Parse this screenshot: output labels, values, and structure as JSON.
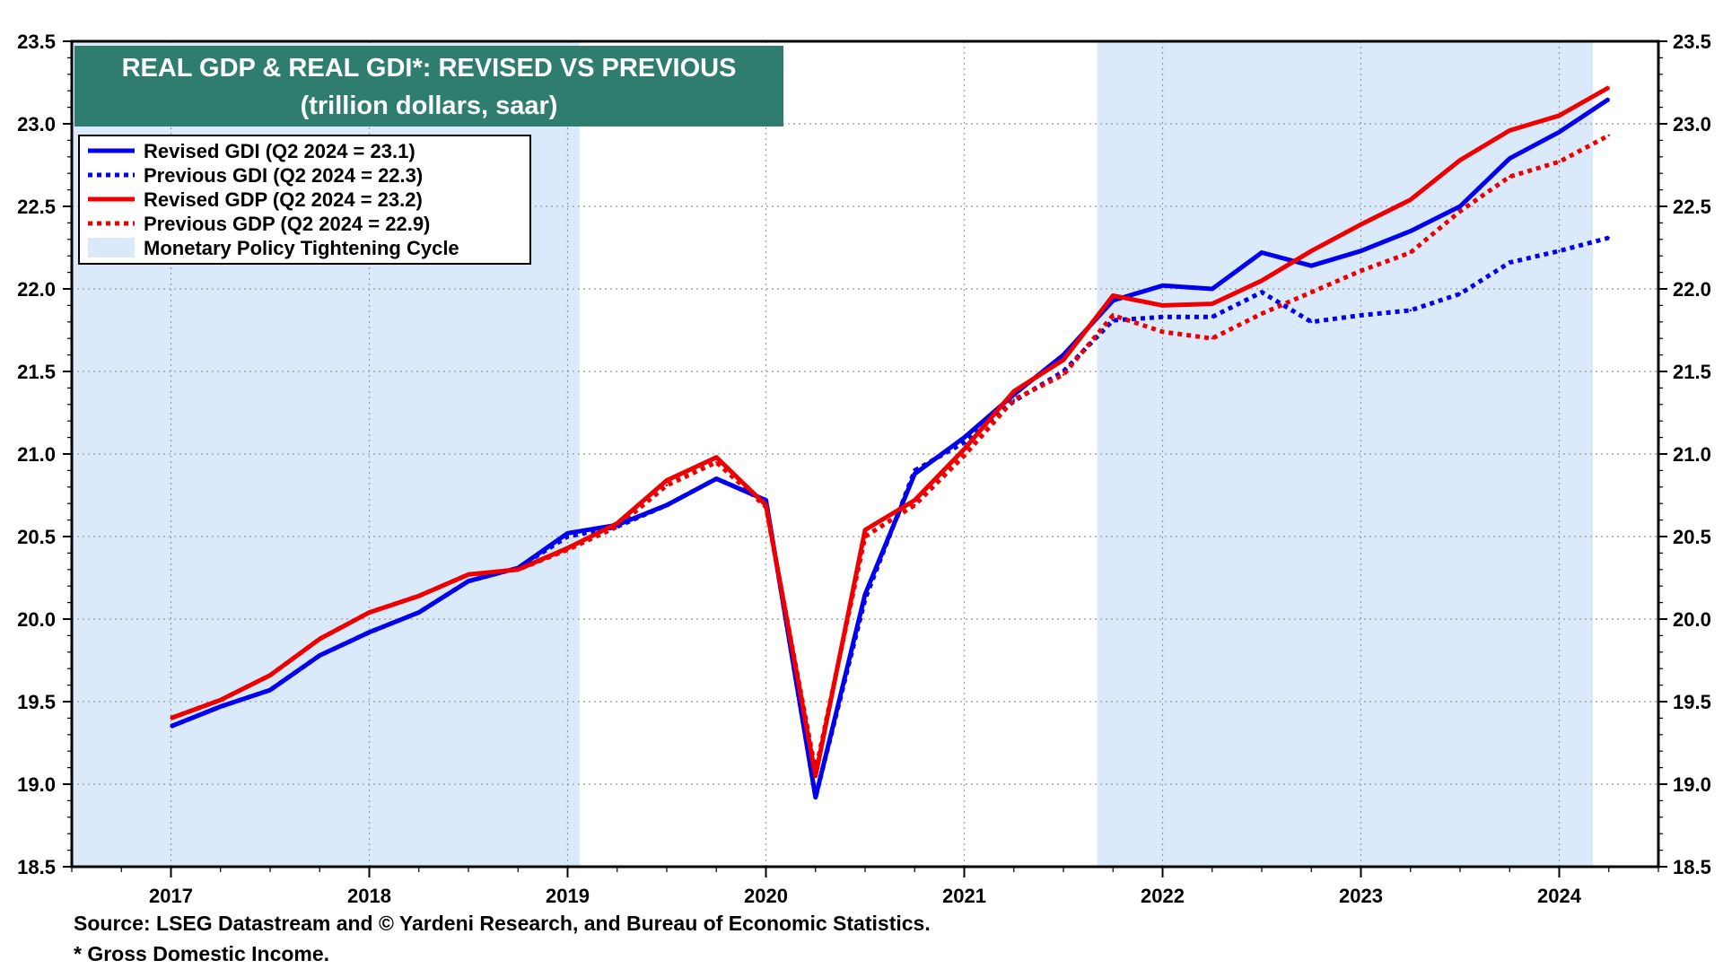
{
  "chart_data": {
    "type": "line",
    "title": "REAL GDP & REAL GDI*: REVISED VS PREVIOUS",
    "subtitle": "(trillion dollars, saar)",
    "xlabel": "",
    "ylabel": "",
    "ylim": [
      18.5,
      23.5
    ],
    "xlim": [
      2016.5,
      2024.5
    ],
    "y_ticks": [
      "18.5",
      "19.0",
      "19.5",
      "20.0",
      "20.5",
      "21.0",
      "21.5",
      "22.0",
      "22.5",
      "23.0",
      "23.5"
    ],
    "x_tick_labels": [
      "2017",
      "2018",
      "2019",
      "2020",
      "2021",
      "2022",
      "2023",
      "2024"
    ],
    "legend_position": "top-left",
    "grid": true,
    "colors": {
      "title_bg": "#2e7d6f",
      "shade": "#dbeafb",
      "gdi": "#0000ee",
      "gdp": "#ee0000"
    },
    "shaded_periods": [
      {
        "label": "Monetary Policy Tightening Cycle",
        "start": 2016.5,
        "end": 2019.06
      },
      {
        "label": "Monetary Policy Tightening Cycle",
        "start": 2021.67,
        "end": 2024.17
      }
    ],
    "x": [
      2017.0,
      2017.25,
      2017.5,
      2017.75,
      2018.0,
      2018.25,
      2018.5,
      2018.75,
      2019.0,
      2019.25,
      2019.5,
      2019.75,
      2020.0,
      2020.25,
      2020.5,
      2020.75,
      2021.0,
      2021.25,
      2021.5,
      2021.75,
      2022.0,
      2022.25,
      2022.5,
      2022.75,
      2023.0,
      2023.25,
      2023.5,
      2023.75,
      2024.0,
      2024.25
    ],
    "series": [
      {
        "name": "Revised GDI (Q2 2024 = 23.1)",
        "style": "solid",
        "color": "#0000ee",
        "values": [
          19.35,
          19.47,
          19.57,
          19.78,
          19.92,
          20.04,
          20.23,
          20.31,
          20.52,
          20.57,
          20.69,
          20.85,
          20.72,
          18.92,
          20.15,
          20.88,
          21.1,
          21.36,
          21.6,
          21.93,
          22.02,
          22.0,
          22.22,
          22.14,
          22.23,
          22.35,
          22.5,
          22.79,
          22.95,
          23.15
        ]
      },
      {
        "name": "Previous GDI (Q2 2024 = 22.3)",
        "style": "dotted",
        "color": "#0000ee",
        "values": [
          19.35,
          19.47,
          19.57,
          19.78,
          19.92,
          20.04,
          20.23,
          20.31,
          20.5,
          20.56,
          20.69,
          20.85,
          20.72,
          18.92,
          20.12,
          20.9,
          21.07,
          21.32,
          21.5,
          21.81,
          21.83,
          21.83,
          21.98,
          21.8,
          21.84,
          21.87,
          21.97,
          22.16,
          22.23,
          22.31
        ]
      },
      {
        "name": "Revised GDP (Q2 2024 = 23.2)",
        "style": "solid",
        "color": "#ee0000",
        "values": [
          19.4,
          19.51,
          19.66,
          19.88,
          20.04,
          20.14,
          20.27,
          20.3,
          20.43,
          20.58,
          20.84,
          20.98,
          20.69,
          19.05,
          20.54,
          20.72,
          21.03,
          21.38,
          21.57,
          21.96,
          21.9,
          21.91,
          22.05,
          22.23,
          22.39,
          22.54,
          22.78,
          22.96,
          23.05,
          23.22
        ]
      },
      {
        "name": "Previous GDP (Q2 2024 = 22.9)",
        "style": "dotted",
        "color": "#ee0000",
        "values": [
          19.4,
          19.51,
          19.66,
          19.88,
          20.04,
          20.14,
          20.27,
          20.3,
          20.42,
          20.56,
          20.81,
          20.95,
          20.68,
          19.08,
          20.5,
          20.69,
          20.99,
          21.33,
          21.48,
          21.84,
          21.74,
          21.7,
          21.85,
          21.98,
          22.11,
          22.22,
          22.47,
          22.68,
          22.77,
          22.93
        ]
      }
    ]
  },
  "legend": {
    "items": [
      {
        "label": "Revised GDI (Q2 2024 = 23.1)",
        "kind": "solid",
        "color": "#0000ee"
      },
      {
        "label": "Previous GDI (Q2 2024 = 22.3)",
        "kind": "dotted",
        "color": "#0000ee"
      },
      {
        "label": "Revised GDP (Q2 2024 = 23.2)",
        "kind": "solid",
        "color": "#ee0000"
      },
      {
        "label": "Previous GDP (Q2 2024 = 22.9)",
        "kind": "dotted",
        "color": "#ee0000"
      },
      {
        "label": "Monetary Policy Tightening Cycle",
        "kind": "shade",
        "color": "#dbeafb"
      }
    ]
  },
  "footnotes": {
    "source": "Source: LSEG Datastream and © Yardeni Research, and Bureau of Economic Statistics.",
    "asterisk": "* Gross Domestic Income."
  }
}
